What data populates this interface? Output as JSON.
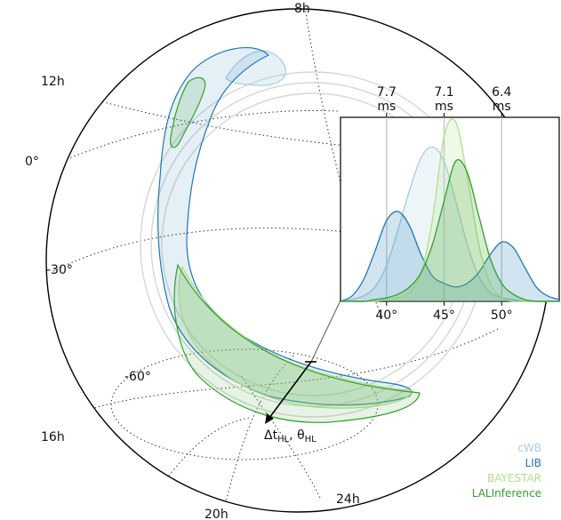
{
  "chart_data": {
    "type": "area",
    "title": "",
    "sky_map": {
      "projection": "orthographic",
      "ra_labels": [
        "8h",
        "12h",
        "16h",
        "20h",
        "24h"
      ],
      "dec_labels": [
        "0°",
        "-30°",
        "-60°"
      ],
      "arc_annotation": {
        "main": "Δt",
        "sub1": "HL",
        "sep": ", θ",
        "sub2": "HL"
      }
    },
    "inset": {
      "x_ticks": [
        40,
        45,
        50
      ],
      "x_tick_labels": [
        "40°",
        "45°",
        "50°"
      ],
      "xlim": [
        36,
        55
      ],
      "top_ticks": [
        {
          "x": 40,
          "label_top": "7.7",
          "label_bottom": "ms"
        },
        {
          "x": 45,
          "label_top": "7.1",
          "label_bottom": "ms"
        },
        {
          "x": 50,
          "label_top": "6.4",
          "label_bottom": "ms"
        }
      ],
      "x": [
        36,
        37,
        38,
        39,
        40,
        41,
        42,
        43,
        44,
        45,
        46,
        47,
        48,
        49,
        50,
        51,
        52,
        53,
        54,
        55
      ],
      "series": [
        {
          "name": "cWB",
          "color": "#a6cee3",
          "values": [
            0.0,
            0.01,
            0.03,
            0.08,
            0.2,
            0.4,
            0.62,
            0.8,
            0.86,
            0.78,
            0.56,
            0.32,
            0.14,
            0.05,
            0.02,
            0.01,
            0.0,
            0.0,
            0.0,
            0.0
          ]
        },
        {
          "name": "LIB",
          "color": "#1f78b4",
          "values": [
            0.0,
            0.03,
            0.12,
            0.28,
            0.45,
            0.5,
            0.42,
            0.26,
            0.14,
            0.1,
            0.08,
            0.1,
            0.16,
            0.26,
            0.33,
            0.3,
            0.19,
            0.08,
            0.03,
            0.01
          ]
        },
        {
          "name": "BAYESTAR",
          "color": "#b2df8a",
          "values": [
            0.0,
            0.0,
            0.0,
            0.0,
            0.01,
            0.02,
            0.05,
            0.16,
            0.46,
            0.92,
            1.0,
            0.7,
            0.32,
            0.1,
            0.02,
            0.0,
            0.0,
            0.0,
            0.0,
            0.0
          ]
        },
        {
          "name": "LALInference",
          "color": "#33a02c",
          "values": [
            0.0,
            0.0,
            0.0,
            0.01,
            0.02,
            0.04,
            0.08,
            0.16,
            0.32,
            0.56,
            0.78,
            0.72,
            0.48,
            0.24,
            0.1,
            0.04,
            0.01,
            0.0,
            0.0,
            0.0
          ]
        }
      ]
    },
    "legend": {
      "position": "bottom-right",
      "entries": [
        {
          "label": "cWB",
          "color": "#a6cee3"
        },
        {
          "label": "LIB",
          "color": "#1f78b4"
        },
        {
          "label": "BAYESTAR",
          "color": "#b2df8a"
        },
        {
          "label": "LALInference",
          "color": "#33a02c"
        }
      ]
    }
  }
}
